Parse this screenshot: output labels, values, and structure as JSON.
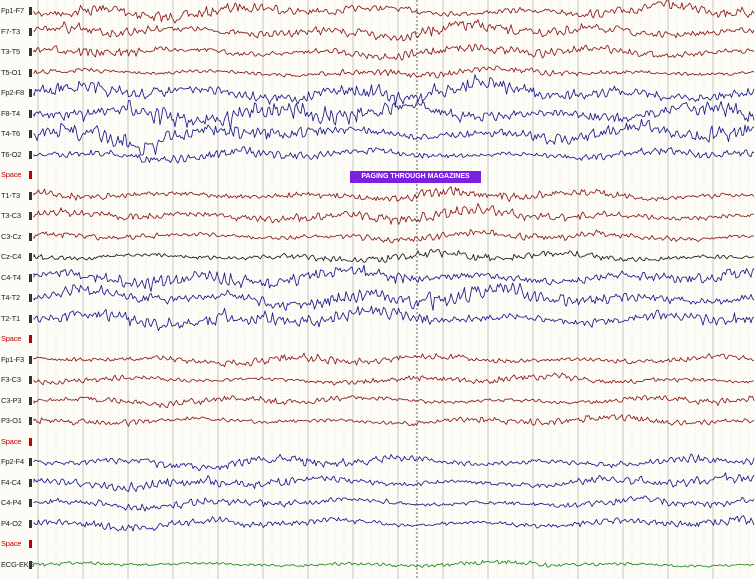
{
  "event_annotation": "PAGING THROUGH MAGAZINES",
  "channels": [
    {
      "label": "Fp1-F7",
      "color": "#8b1a1a",
      "amp": 9
    },
    {
      "label": "F7-T3",
      "color": "#8b1a1a",
      "amp": 10
    },
    {
      "label": "T3-T5",
      "color": "#8b1a1a",
      "amp": 9
    },
    {
      "label": "T5-O1",
      "color": "#8b1a1a",
      "amp": 6
    },
    {
      "label": "Fp2-F8",
      "color": "#1c1c8c",
      "amp": 14
    },
    {
      "label": "F8-T4",
      "color": "#1c1c8c",
      "amp": 15
    },
    {
      "label": "T4-T6",
      "color": "#1c1c8c",
      "amp": 13
    },
    {
      "label": "T6-O2",
      "color": "#1c1c8c",
      "amp": 8
    },
    {
      "label": "Space",
      "color": "",
      "amp": 0
    },
    {
      "label": "T1-T3",
      "color": "#8b1a1a",
      "amp": 8
    },
    {
      "label": "T3-C3",
      "color": "#8b1a1a",
      "amp": 9
    },
    {
      "label": "C3-Cz",
      "color": "#8b1a1a",
      "amp": 7
    },
    {
      "label": "Cz-C4",
      "color": "#1a1a1a",
      "amp": 7
    },
    {
      "label": "C4-T4",
      "color": "#1c1c8c",
      "amp": 12
    },
    {
      "label": "T4-T2",
      "color": "#1c1c8c",
      "amp": 14
    },
    {
      "label": "T2-T1",
      "color": "#1c1c8c",
      "amp": 12
    },
    {
      "label": "Space",
      "color": "",
      "amp": 0
    },
    {
      "label": "Fp1-F3",
      "color": "#8b1a1a",
      "amp": 7
    },
    {
      "label": "F3-C3",
      "color": "#8b1a1a",
      "amp": 6
    },
    {
      "label": "C3-P3",
      "color": "#8b1a1a",
      "amp": 6
    },
    {
      "label": "P3-O1",
      "color": "#8b1a1a",
      "amp": 6
    },
    {
      "label": "Space",
      "color": "",
      "amp": 0
    },
    {
      "label": "Fp2-F4",
      "color": "#1c1c8c",
      "amp": 8
    },
    {
      "label": "F4-C4",
      "color": "#1c1c8c",
      "amp": 8
    },
    {
      "label": "C4-P4",
      "color": "#1c1c8c",
      "amp": 7
    },
    {
      "label": "P4-O2",
      "color": "#1c1c8c",
      "amp": 7
    },
    {
      "label": "Space",
      "color": "",
      "amp": 0
    },
    {
      "label": "ECG-EKG",
      "color": "#1a8a1a",
      "amp": 4
    }
  ],
  "colors": {
    "background": "#fdfcf6",
    "grid_major": "#b8b8b8",
    "grid_minor": "#d4d4c8",
    "space_marker": "#c00000",
    "annotation": "#7b1fe0"
  }
}
